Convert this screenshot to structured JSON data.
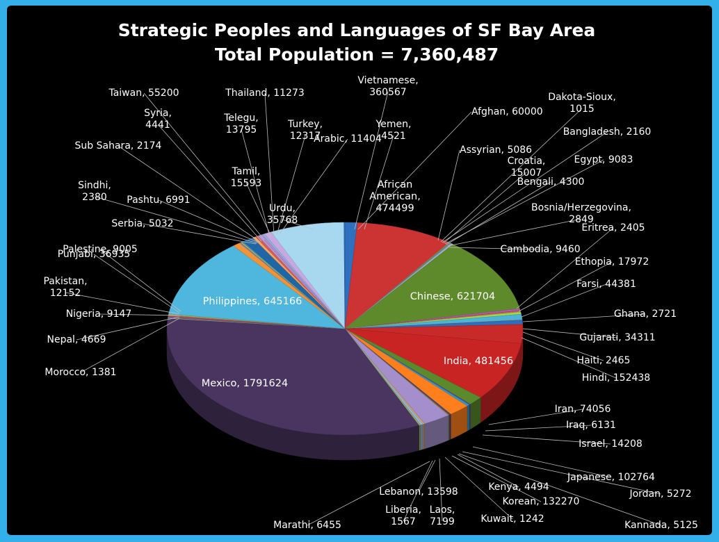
{
  "chart_data": {
    "type": "pie",
    "title": "Strategic Peoples and Languages of SF Bay Area",
    "subtitle": "Total Population = 7,360,487",
    "style": "3d-pie",
    "legend": "none",
    "label_format": "category, value",
    "slices": [
      {
        "name": "Afghan",
        "value": 60000,
        "color": "#2e6fbe"
      },
      {
        "name": "African American",
        "value": 474499,
        "color": "#cc3434"
      },
      {
        "name": "Assyrian",
        "value": 5086,
        "color": "#7fa84a"
      },
      {
        "name": "Bangladesh",
        "value": 2160,
        "color": "#8a5fb0"
      },
      {
        "name": "Bengali",
        "value": 4300,
        "color": "#3fb1d3"
      },
      {
        "name": "Bosnia/Herzegovina",
        "value": 2849,
        "color": "#f39a3c"
      },
      {
        "name": "Cambodia",
        "value": 9460,
        "color": "#9db7e0"
      },
      {
        "name": "Chinese",
        "value": 621704,
        "color": "#5f8a2c"
      },
      {
        "name": "Croatia",
        "value": 15007,
        "color": "#b55cb0"
      },
      {
        "name": "Dakota-Sioux",
        "value": 1015,
        "color": "#1e5896"
      },
      {
        "name": "Egypt",
        "value": 9083,
        "color": "#e15b5b"
      },
      {
        "name": "Eritrea",
        "value": 2405,
        "color": "#a2c16a"
      },
      {
        "name": "Ethopia",
        "value": 17972,
        "color": "#a2d94a"
      },
      {
        "name": "Farsi",
        "value": 44381,
        "color": "#4db3d7"
      },
      {
        "name": "Ghana",
        "value": 2721,
        "color": "#ff9d4d"
      },
      {
        "name": "Gujarati",
        "value": 34311,
        "color": "#2d6fbf"
      },
      {
        "name": "Haiti",
        "value": 2465,
        "color": "#d24545"
      },
      {
        "name": "Hindi",
        "value": 152438,
        "color": "#c82a2a"
      },
      {
        "name": "India",
        "value": 481456,
        "color": "#c92424"
      },
      {
        "name": "Iran",
        "value": 74056,
        "color": "#5b8a2c"
      },
      {
        "name": "Iraq",
        "value": 6131,
        "color": "#6d3e98"
      },
      {
        "name": "Israel",
        "value": 14208,
        "color": "#2a9ac6"
      },
      {
        "name": "Japanese",
        "value": 102764,
        "color": "#ff7f1c"
      },
      {
        "name": "Jordan",
        "value": 5272,
        "color": "#1d5aa0"
      },
      {
        "name": "Kannada",
        "value": 5125,
        "color": "#a83232"
      },
      {
        "name": "Kenya",
        "value": 4494,
        "color": "#7b9a3a"
      },
      {
        "name": "Korean",
        "value": 132270,
        "color": "#a48fcc"
      },
      {
        "name": "Kuwait",
        "value": 1242,
        "color": "#3eb6d6"
      },
      {
        "name": "Laos",
        "value": 7199,
        "color": "#f0a154"
      },
      {
        "name": "Lebanon",
        "value": 13598,
        "color": "#8fb1dd"
      },
      {
        "name": "Liberia",
        "value": 1567,
        "color": "#e06a6a"
      },
      {
        "name": "Marathi",
        "value": 6455,
        "color": "#8fc65a"
      },
      {
        "name": "Mexico",
        "value": 1791624,
        "color": "#4a3560"
      },
      {
        "name": "Morocco",
        "value": 1381,
        "color": "#3f9fbf"
      },
      {
        "name": "Nepal",
        "value": 4669,
        "color": "#ff9e4a"
      },
      {
        "name": "Nigeria",
        "value": 9147,
        "color": "#3d6fb5"
      },
      {
        "name": "Pakistan",
        "value": 12152,
        "color": "#c94a4a"
      },
      {
        "name": "Palestine",
        "value": 9005,
        "color": "#96bb55"
      },
      {
        "name": "Philippines",
        "value": 645166,
        "color": "#4fb7de"
      },
      {
        "name": "Punjabi",
        "value": 36935,
        "color": "#f39236"
      },
      {
        "name": "Serbia",
        "value": 5032,
        "color": "#6a9bd4"
      },
      {
        "name": "Sindhi",
        "value": 2380,
        "color": "#d45757"
      },
      {
        "name": "Pashtu",
        "value": 6991,
        "color": "#a1c768"
      },
      {
        "name": "Sub Sahara",
        "value": 2174,
        "color": "#9168b8"
      },
      {
        "name": "Syria",
        "value": 4441,
        "color": "#3ab0d4"
      },
      {
        "name": "Taiwan",
        "value": 55200,
        "color": "#1e66a6"
      },
      {
        "name": "Tamil",
        "value": 15593,
        "color": "#f4a55f"
      },
      {
        "name": "Telegu",
        "value": 13795,
        "color": "#d35b5b"
      },
      {
        "name": "Thailand",
        "value": 11273,
        "color": "#b59ad3"
      },
      {
        "name": "Turkey",
        "value": 12317,
        "color": "#b48ad0"
      },
      {
        "name": "Arabic",
        "value": 11404,
        "color": "#8fb3de"
      },
      {
        "name": "Urdu",
        "value": 35768,
        "color": "#c8a8e0"
      },
      {
        "name": "Vietnamese",
        "value": 360567,
        "color": "#a8d8f0"
      },
      {
        "name": "Yemen",
        "value": 4521,
        "color": "#2e6fbe"
      }
    ]
  }
}
